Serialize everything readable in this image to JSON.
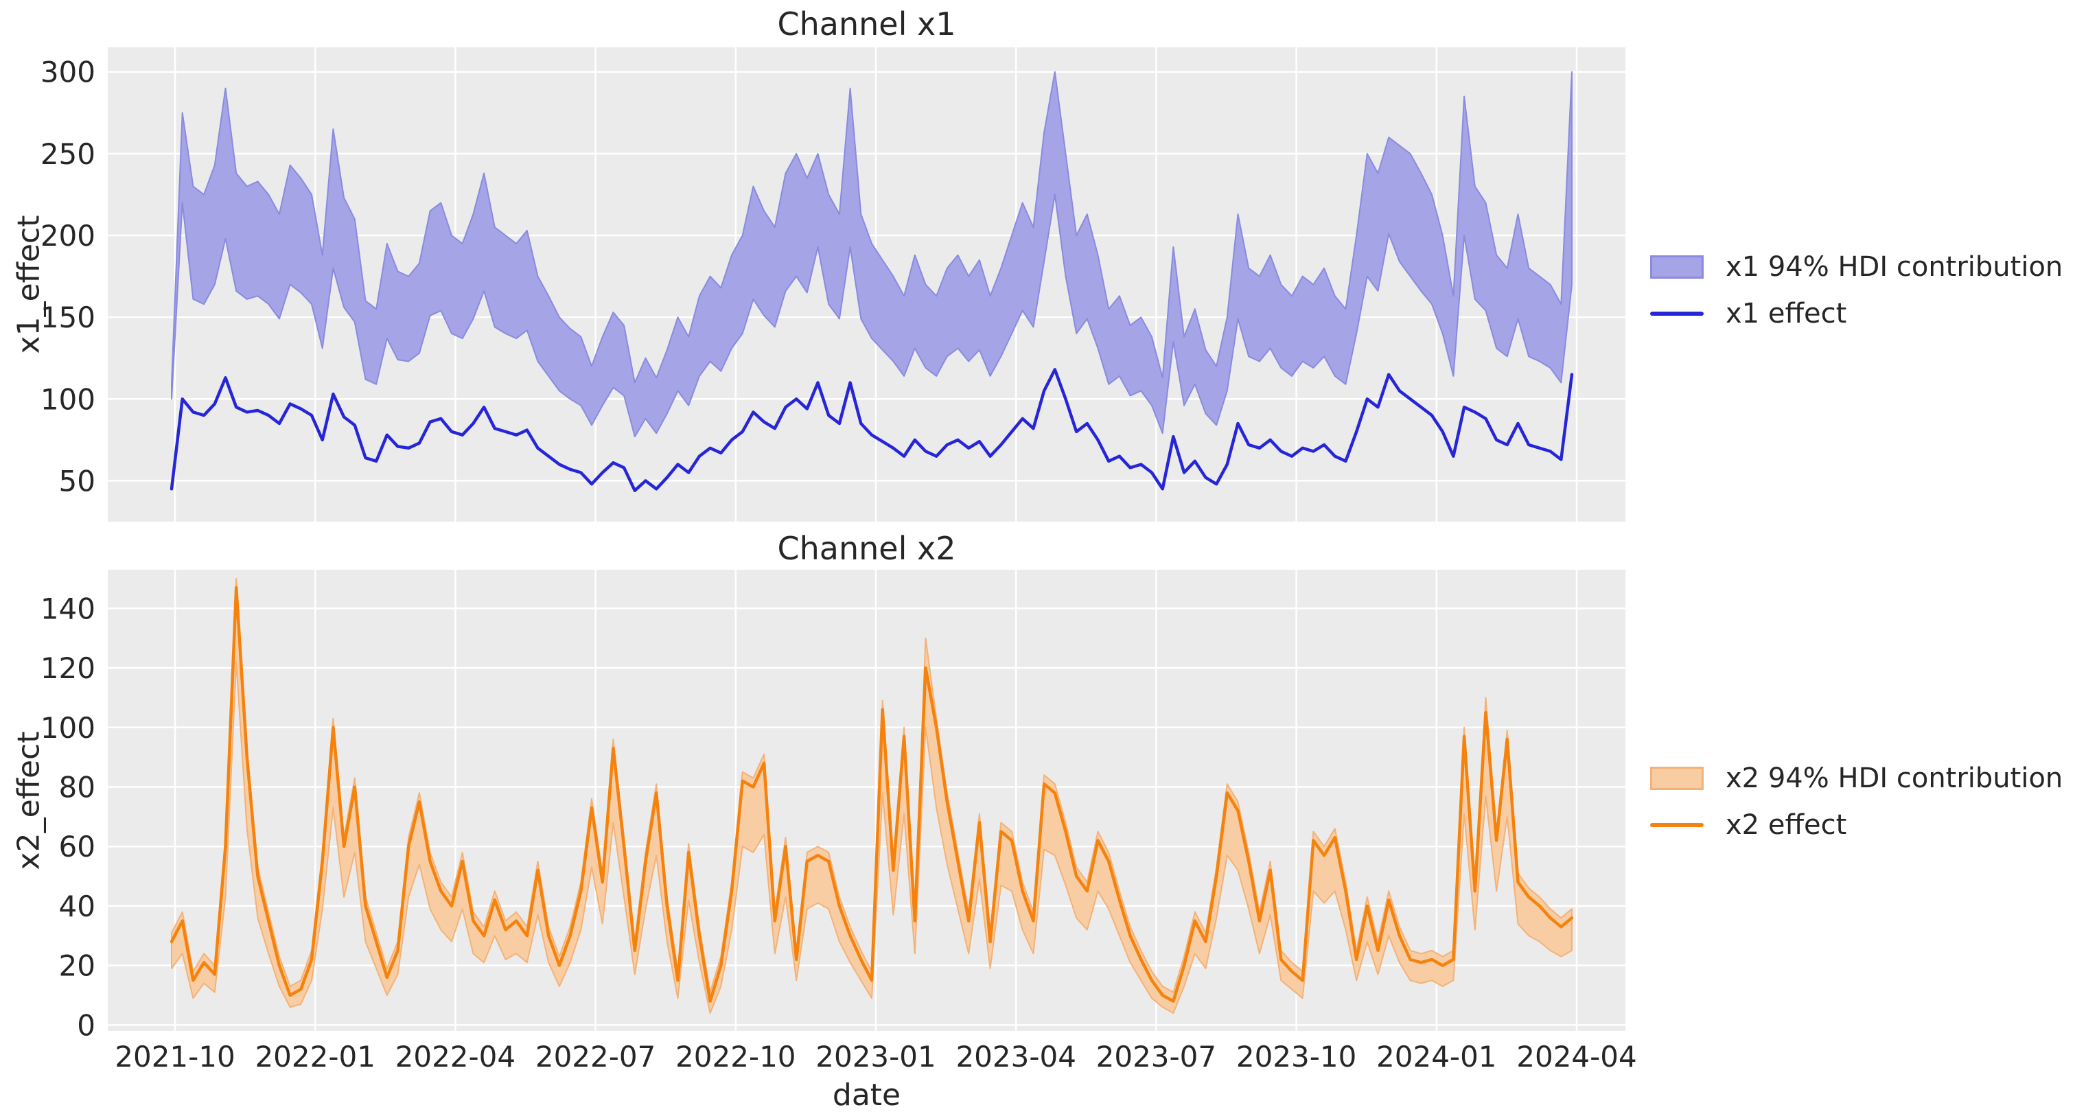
{
  "style": {
    "panel_bg": "#ebebeb",
    "grid_color": "#ffffff",
    "text_color": "#262626",
    "page_bg": "#ffffff"
  },
  "chart_data": [
    {
      "type": "area+line",
      "title": "Channel x1",
      "ylabel": "x1_effect",
      "xlabel": "",
      "ylim": [
        25,
        315
      ],
      "yticks": [
        50,
        100,
        150,
        200,
        250,
        300
      ],
      "xticks": [
        "2021-10",
        "2022-01",
        "2022-04",
        "2022-07",
        "2022-10",
        "2023-01",
        "2023-04",
        "2023-07",
        "2023-10",
        "2024-01",
        "2024-04"
      ],
      "grid": true,
      "legend_position": "right",
      "colors": {
        "line": "#2626d8",
        "band_fill": "#a4a4e6",
        "band_edge": "#8a8ae0"
      },
      "legend": [
        {
          "label": "x1 94% HDI contribution",
          "swatch": "band"
        },
        {
          "label": "x1 effect",
          "swatch": "line"
        }
      ],
      "series": {
        "line": [
          45,
          100,
          92,
          90,
          97,
          113,
          95,
          92,
          93,
          90,
          85,
          97,
          94,
          90,
          75,
          103,
          89,
          84,
          64,
          62,
          78,
          71,
          70,
          73,
          86,
          88,
          80,
          78,
          85,
          95,
          82,
          80,
          78,
          81,
          70,
          65,
          60,
          57,
          55,
          48,
          55,
          61,
          58,
          44,
          50,
          45,
          52,
          60,
          55,
          65,
          70,
          67,
          75,
          80,
          92,
          86,
          82,
          95,
          100,
          94,
          110,
          90,
          85,
          110,
          85,
          78,
          74,
          70,
          65,
          75,
          68,
          65,
          72,
          75,
          70,
          74,
          65,
          72,
          80,
          88,
          82,
          105,
          118,
          100,
          80,
          85,
          75,
          62,
          65,
          58,
          60,
          55,
          45,
          77,
          55,
          62,
          52,
          48,
          60,
          85,
          72,
          70,
          75,
          68,
          65,
          70,
          68,
          72,
          65,
          62,
          80,
          100,
          95,
          115,
          105,
          100,
          95,
          90,
          80,
          65,
          95,
          92,
          88,
          75,
          72,
          85,
          72,
          70,
          68,
          63,
          115
        ],
        "band_high": [
          110,
          275,
          230,
          225,
          243,
          290,
          238,
          230,
          233,
          225,
          213,
          243,
          235,
          225,
          188,
          265,
          223,
          210,
          160,
          155,
          195,
          178,
          175,
          183,
          215,
          220,
          200,
          195,
          213,
          238,
          205,
          200,
          195,
          203,
          175,
          163,
          150,
          143,
          138,
          120,
          138,
          153,
          145,
          110,
          125,
          113,
          130,
          150,
          138,
          163,
          175,
          168,
          188,
          200,
          230,
          215,
          205,
          238,
          250,
          235,
          250,
          225,
          213,
          290,
          213,
          195,
          185,
          175,
          163,
          188,
          170,
          163,
          180,
          188,
          175,
          185,
          163,
          180,
          200,
          220,
          205,
          263,
          300,
          250,
          200,
          213,
          188,
          155,
          163,
          145,
          150,
          138,
          113,
          193,
          138,
          155,
          130,
          120,
          150,
          213,
          180,
          175,
          188,
          170,
          163,
          175,
          170,
          180,
          163,
          155,
          200,
          250,
          238,
          260,
          255,
          250,
          238,
          225,
          200,
          163,
          285,
          230,
          220,
          188,
          180,
          213,
          180,
          175,
          170,
          158,
          300
        ],
        "band_low": [
          100,
          220,
          161,
          158,
          170,
          198,
          166,
          161,
          163,
          158,
          149,
          170,
          165,
          158,
          131,
          180,
          156,
          147,
          112,
          109,
          137,
          124,
          123,
          128,
          151,
          154,
          140,
          137,
          149,
          166,
          144,
          140,
          137,
          142,
          123,
          114,
          105,
          100,
          96,
          84,
          96,
          107,
          102,
          77,
          88,
          79,
          91,
          105,
          96,
          114,
          123,
          117,
          131,
          140,
          161,
          151,
          144,
          166,
          175,
          165,
          193,
          158,
          149,
          193,
          149,
          137,
          130,
          123,
          114,
          131,
          119,
          114,
          126,
          131,
          123,
          130,
          114,
          126,
          140,
          154,
          144,
          184,
          225,
          175,
          140,
          149,
          131,
          109,
          114,
          102,
          105,
          96,
          79,
          135,
          96,
          109,
          91,
          84,
          105,
          149,
          126,
          123,
          131,
          119,
          114,
          123,
          119,
          126,
          114,
          109,
          140,
          175,
          166,
          201,
          184,
          175,
          166,
          158,
          140,
          114,
          200,
          161,
          154,
          131,
          126,
          149,
          126,
          123,
          119,
          110,
          170
        ]
      }
    },
    {
      "type": "area+line",
      "title": "Channel x2",
      "ylabel": "x2_effect",
      "xlabel": "date",
      "ylim": [
        -2,
        153
      ],
      "yticks": [
        0,
        20,
        40,
        60,
        80,
        100,
        120,
        140
      ],
      "xticks": [
        "2021-10",
        "2022-01",
        "2022-04",
        "2022-07",
        "2022-10",
        "2023-01",
        "2023-04",
        "2023-07",
        "2023-10",
        "2024-01",
        "2024-04"
      ],
      "grid": true,
      "legend_position": "right",
      "colors": {
        "line": "#f5820d",
        "band_fill": "#f8cda4",
        "band_edge": "#f3b277"
      },
      "legend": [
        {
          "label": "x2 94% HDI contribution",
          "swatch": "band"
        },
        {
          "label": "x2 effect",
          "swatch": "line"
        }
      ],
      "series": {
        "line": [
          28,
          35,
          15,
          21,
          17,
          60,
          147,
          90,
          50,
          35,
          20,
          10,
          12,
          22,
          55,
          100,
          60,
          80,
          40,
          28,
          16,
          25,
          60,
          75,
          55,
          45,
          40,
          55,
          35,
          30,
          42,
          32,
          35,
          30,
          52,
          30,
          20,
          30,
          45,
          73,
          48,
          93,
          60,
          25,
          55,
          78,
          40,
          15,
          58,
          30,
          8,
          20,
          45,
          82,
          80,
          88,
          35,
          60,
          22,
          55,
          57,
          55,
          40,
          30,
          22,
          15,
          106,
          52,
          97,
          35,
          120,
          100,
          75,
          55,
          35,
          68,
          28,
          65,
          62,
          45,
          35,
          81,
          78,
          65,
          50,
          45,
          62,
          55,
          42,
          30,
          22,
          15,
          10,
          8,
          20,
          35,
          28,
          50,
          78,
          72,
          55,
          35,
          52,
          22,
          18,
          15,
          62,
          57,
          63,
          45,
          22,
          40,
          25,
          42,
          30,
          22,
          21,
          22,
          20,
          22,
          97,
          45,
          105,
          62,
          96,
          48,
          43,
          40,
          36,
          33,
          36
        ],
        "band_high": [
          31,
          38,
          18,
          24,
          20,
          63,
          150,
          93,
          53,
          38,
          23,
          13,
          15,
          25,
          58,
          103,
          63,
          83,
          43,
          31,
          19,
          28,
          63,
          78,
          58,
          48,
          43,
          58,
          38,
          33,
          45,
          35,
          38,
          33,
          55,
          33,
          23,
          33,
          48,
          76,
          51,
          96,
          63,
          28,
          58,
          81,
          43,
          18,
          61,
          33,
          11,
          23,
          48,
          85,
          83,
          91,
          38,
          63,
          25,
          58,
          60,
          58,
          43,
          33,
          25,
          18,
          109,
          55,
          100,
          38,
          130,
          103,
          78,
          58,
          38,
          71,
          31,
          68,
          65,
          48,
          38,
          84,
          81,
          68,
          53,
          48,
          65,
          58,
          45,
          33,
          25,
          18,
          13,
          11,
          23,
          38,
          31,
          53,
          81,
          75,
          58,
          38,
          55,
          25,
          21,
          18,
          65,
          60,
          66,
          48,
          25,
          43,
          28,
          45,
          33,
          25,
          24,
          25,
          23,
          25,
          100,
          48,
          110,
          65,
          99,
          51,
          46,
          43,
          39,
          36,
          39
        ],
        "band_low": [
          19,
          24,
          9,
          14,
          11,
          43,
          122,
          66,
          36,
          24,
          13,
          6,
          7,
          15,
          39,
          73,
          43,
          58,
          28,
          19,
          10,
          17,
          43,
          54,
          39,
          32,
          28,
          39,
          24,
          21,
          30,
          22,
          24,
          21,
          37,
          21,
          13,
          21,
          32,
          53,
          34,
          68,
          43,
          17,
          39,
          57,
          28,
          9,
          42,
          21,
          4,
          13,
          32,
          60,
          58,
          64,
          24,
          43,
          15,
          39,
          41,
          39,
          28,
          21,
          15,
          9,
          78,
          37,
          71,
          24,
          100,
          73,
          54,
          39,
          24,
          49,
          19,
          47,
          45,
          32,
          24,
          59,
          57,
          47,
          36,
          32,
          45,
          39,
          30,
          21,
          15,
          9,
          6,
          4,
          13,
          24,
          19,
          36,
          57,
          52,
          39,
          24,
          37,
          15,
          12,
          9,
          45,
          41,
          45,
          32,
          15,
          28,
          17,
          30,
          21,
          15,
          14,
          15,
          13,
          15,
          71,
          32,
          77,
          45,
          70,
          34,
          30,
          28,
          25,
          23,
          25
        ]
      }
    }
  ]
}
